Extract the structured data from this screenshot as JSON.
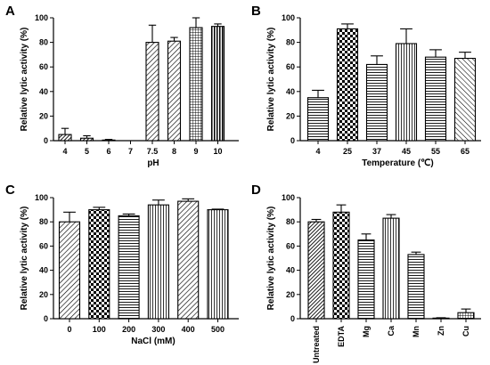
{
  "chart_data": [
    {
      "type": "bar",
      "panel": "A",
      "categories": [
        "4",
        "5",
        "6",
        "7",
        "7.5",
        "8",
        "9",
        "10"
      ],
      "values": [
        5,
        2,
        0.5,
        0,
        80,
        81,
        92,
        93
      ],
      "errors": [
        5,
        2,
        0.5,
        0,
        14,
        3,
        8,
        2
      ],
      "patterns": [
        "dense-diag",
        "dense-diag",
        "dense-diag",
        "dense-diag",
        "diag-left",
        "diag-left",
        "grid",
        "vstripe"
      ],
      "xlabel": "pH",
      "ylabel": "Relative lytic activity  (%)",
      "ylim": [
        0,
        100
      ],
      "yticks": [
        0,
        20,
        40,
        60,
        80,
        100
      ]
    },
    {
      "type": "bar",
      "panel": "B",
      "categories": [
        "4",
        "25",
        "37",
        "45",
        "55",
        "65"
      ],
      "values": [
        35,
        91,
        62,
        79,
        68,
        67
      ],
      "errors": [
        6,
        4,
        7,
        12,
        6,
        5
      ],
      "patterns": [
        "hlines",
        "checker",
        "hlines",
        "vlines",
        "hlines",
        "diag-right"
      ],
      "xlabel": "Temperature (℃)",
      "ylabel": "Relative lytic activity  (%)",
      "ylim": [
        0,
        100
      ],
      "yticks": [
        0,
        20,
        40,
        60,
        80,
        100
      ]
    },
    {
      "type": "bar",
      "panel": "C",
      "categories": [
        "0",
        "100",
        "200",
        "300",
        "400",
        "500"
      ],
      "values": [
        80,
        90,
        85,
        94,
        97,
        90
      ],
      "errors": [
        8,
        2,
        1.5,
        4,
        2,
        0.5
      ],
      "patterns": [
        "diag-left",
        "checker",
        "hlines",
        "vlines",
        "diag-left",
        "vlines"
      ],
      "xlabel": "NaCl (mM)",
      "ylabel": "Relative lytic activity  (%)",
      "ylim": [
        0,
        100
      ],
      "yticks": [
        0,
        20,
        40,
        60,
        80,
        100
      ]
    },
    {
      "type": "bar",
      "panel": "D",
      "categories": [
        "Untreated",
        "EDTA",
        "Mg",
        "Ca",
        "Mn",
        "Zn",
        "Cu"
      ],
      "values": [
        80,
        88,
        65,
        83,
        53,
        0.5,
        5
      ],
      "errors": [
        2,
        6,
        5,
        3,
        2,
        0.3,
        3
      ],
      "patterns": [
        "dense-diag",
        "checker",
        "hlines",
        "vlines",
        "hlines",
        "dense-diag",
        "grid"
      ],
      "xlabel": "",
      "ylabel": "Relative lytic activity  (%)",
      "ylim": [
        0,
        100
      ],
      "yticks": [
        0,
        20,
        40,
        60,
        80,
        100
      ],
      "rotate_ticks": true
    }
  ]
}
